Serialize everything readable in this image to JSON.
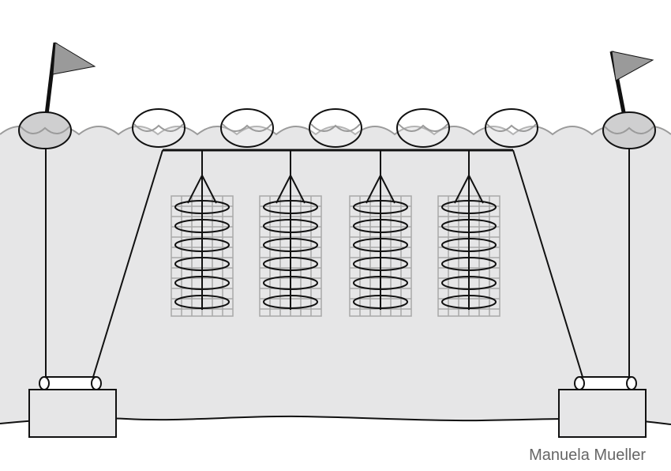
{
  "figure": {
    "subject": "longline-mariculture-with-lantern-nets",
    "credit": "Manuela Mueller"
  },
  "colors": {
    "water": "#e6e6e7",
    "ink": "#111111",
    "buoy_fill": "#cfcfd0",
    "flag_fill": "#9a9a9a",
    "net_grid": "#a8a8a8",
    "surface_line": "#9b9b9b",
    "sky": "#ffffff"
  }
}
